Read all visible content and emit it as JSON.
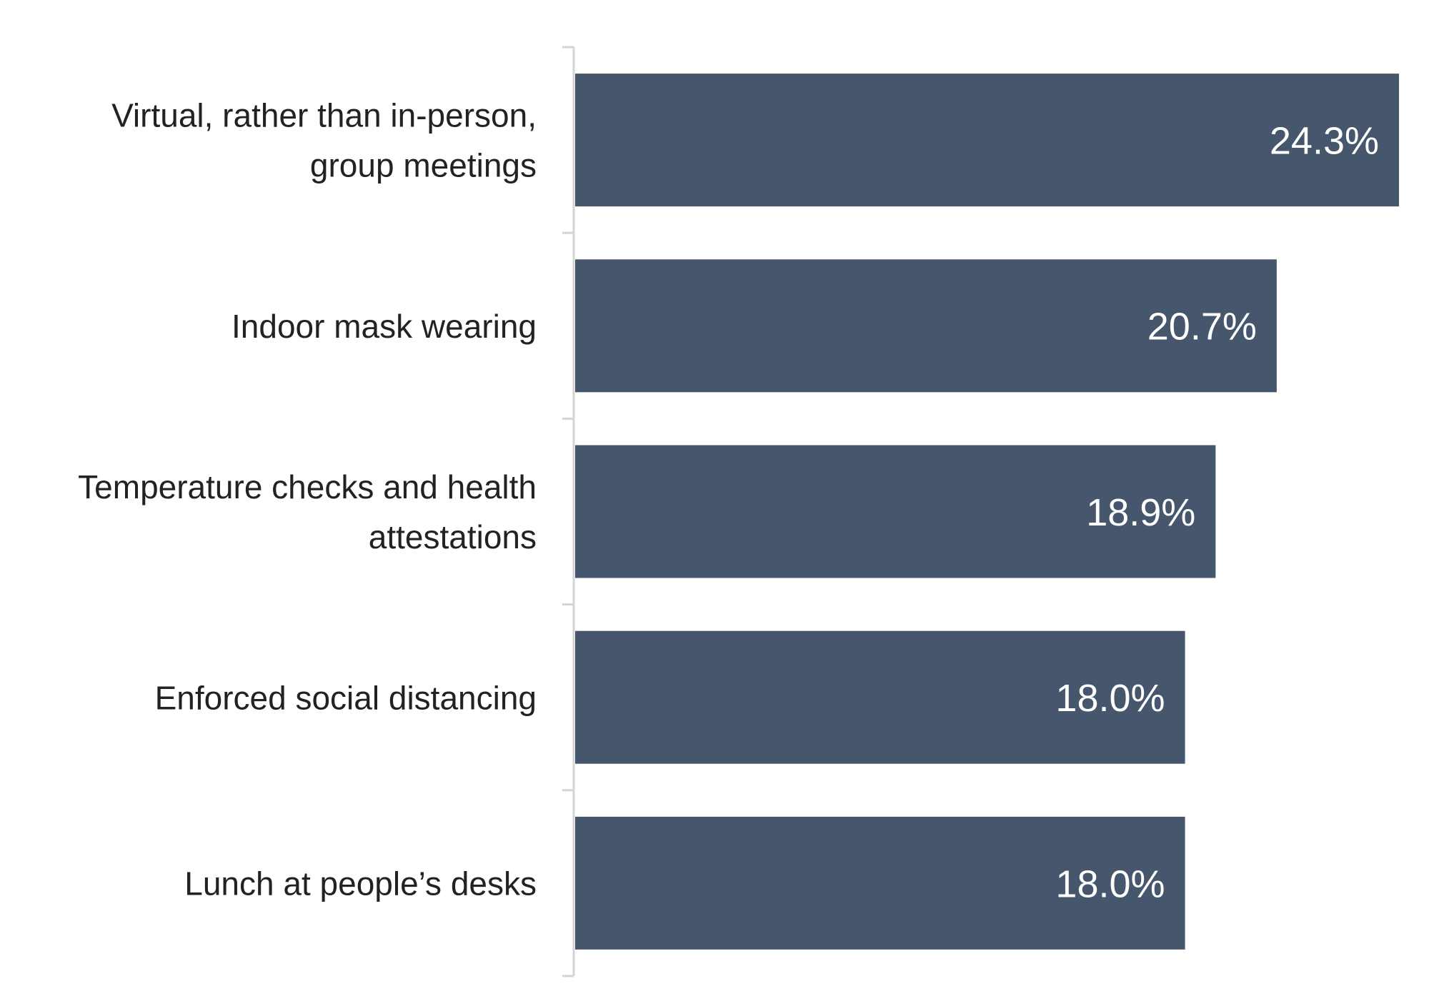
{
  "chart_data": {
    "type": "bar",
    "orientation": "horizontal",
    "categories": [
      [
        "Virtual, rather than in-person,",
        "group meetings"
      ],
      [
        "Indoor mask wearing"
      ],
      [
        "Temperature checks and health",
        "attestations"
      ],
      [
        "Enforced social distancing"
      ],
      [
        "Lunch at people’s desks"
      ]
    ],
    "values": [
      24.3,
      20.7,
      18.9,
      18.0,
      18.0
    ],
    "value_labels": [
      "24.3%",
      "20.7%",
      "18.9%",
      "18.0%",
      "18.0%"
    ],
    "xlim": [
      0,
      24.3
    ],
    "grid": false,
    "legend": "none",
    "colors": {
      "bar": "#46566d",
      "bar_label": "#ffffff",
      "category_label": "#222222",
      "axis": "#d4d4d4"
    }
  }
}
